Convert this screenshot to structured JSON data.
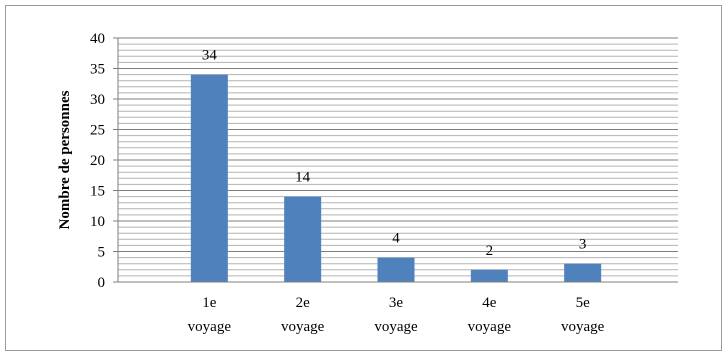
{
  "chart_data": {
    "type": "bar",
    "title": "",
    "xlabel": "",
    "ylabel": "Nombre de personnes",
    "categories": [
      [
        "1e",
        "voyage"
      ],
      [
        "2e",
        "voyage"
      ],
      [
        "3e",
        "voyage"
      ],
      [
        "4e",
        "voyage"
      ],
      [
        "5e",
        "voyage"
      ]
    ],
    "values": [
      34,
      14,
      4,
      2,
      3
    ],
    "ylim": [
      0,
      40
    ],
    "major_ticks": [
      0,
      5,
      10,
      15,
      20,
      25,
      30,
      35,
      40
    ],
    "minor_gridline_step": 1,
    "grid": true,
    "legend": "none",
    "bar_color": "#4f81bd",
    "data_labels": true
  }
}
